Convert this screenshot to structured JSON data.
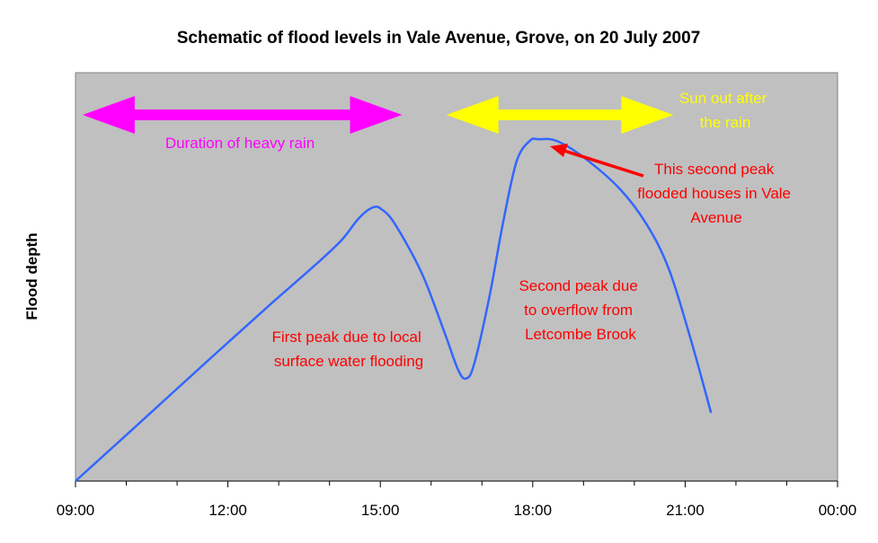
{
  "chart_data": {
    "type": "line",
    "title": "Schematic of flood levels in Vale Avenue, Grove, on 20 July 2007",
    "xlabel": "",
    "ylabel": "Flood depth",
    "x_unit": "hours (time of day)",
    "xlim": [
      9,
      24
    ],
    "ylim": [
      0,
      100
    ],
    "x_tick_labels": [
      "09:00",
      "12:00",
      "15:00",
      "18:00",
      "21:00",
      "00:00"
    ],
    "x_tick_values": [
      9,
      12,
      15,
      18,
      21,
      24
    ],
    "minor_tick_step_hours": 1,
    "grid": false,
    "plot_background": "#c0c0c0",
    "series": [
      {
        "color": "#3366ff",
        "x": [
          9.0,
          10.17,
          11.58,
          12.82,
          13.7,
          14.23,
          14.58,
          14.85,
          15.02,
          15.29,
          15.82,
          16.26,
          16.53,
          16.69,
          16.85,
          17.15,
          17.41,
          17.68,
          17.94,
          18.12,
          18.47,
          19.0,
          19.71,
          20.24,
          20.68,
          21.12,
          21.51
        ],
        "y": [
          0,
          13.2,
          29.2,
          43.1,
          52.7,
          58.9,
          64.4,
          67.0,
          66.6,
          62.9,
          50.8,
          36.5,
          27.3,
          25.1,
          28.8,
          45.3,
          62.9,
          78.2,
          83.3,
          83.7,
          83.3,
          79.3,
          71.6,
          62.9,
          51.9,
          34.3,
          16.7
        ]
      }
    ],
    "annotations": [
      {
        "kind": "double-arrow",
        "label": "Duration of heavy rain",
        "from": 9.14,
        "to": 15.43,
        "color": "#ff00ff"
      },
      {
        "kind": "double-arrow",
        "label_lines": [
          "Sun out after",
          "the rain"
        ],
        "from": 16.3,
        "to": 20.77,
        "color": "#ffff00"
      },
      {
        "kind": "text",
        "label_lines": [
          "First peak due to local",
          "surface water flooding"
        ],
        "color": "#ff0000"
      },
      {
        "kind": "text",
        "label_lines": [
          "Second peak due",
          "to overflow from",
          "Letcombe Brook"
        ],
        "color": "#ff0000"
      },
      {
        "kind": "arrow-text",
        "label_lines": [
          "This second peak",
          "flooded houses in Vale",
          "Avenue"
        ],
        "color": "#ff0000"
      }
    ]
  }
}
